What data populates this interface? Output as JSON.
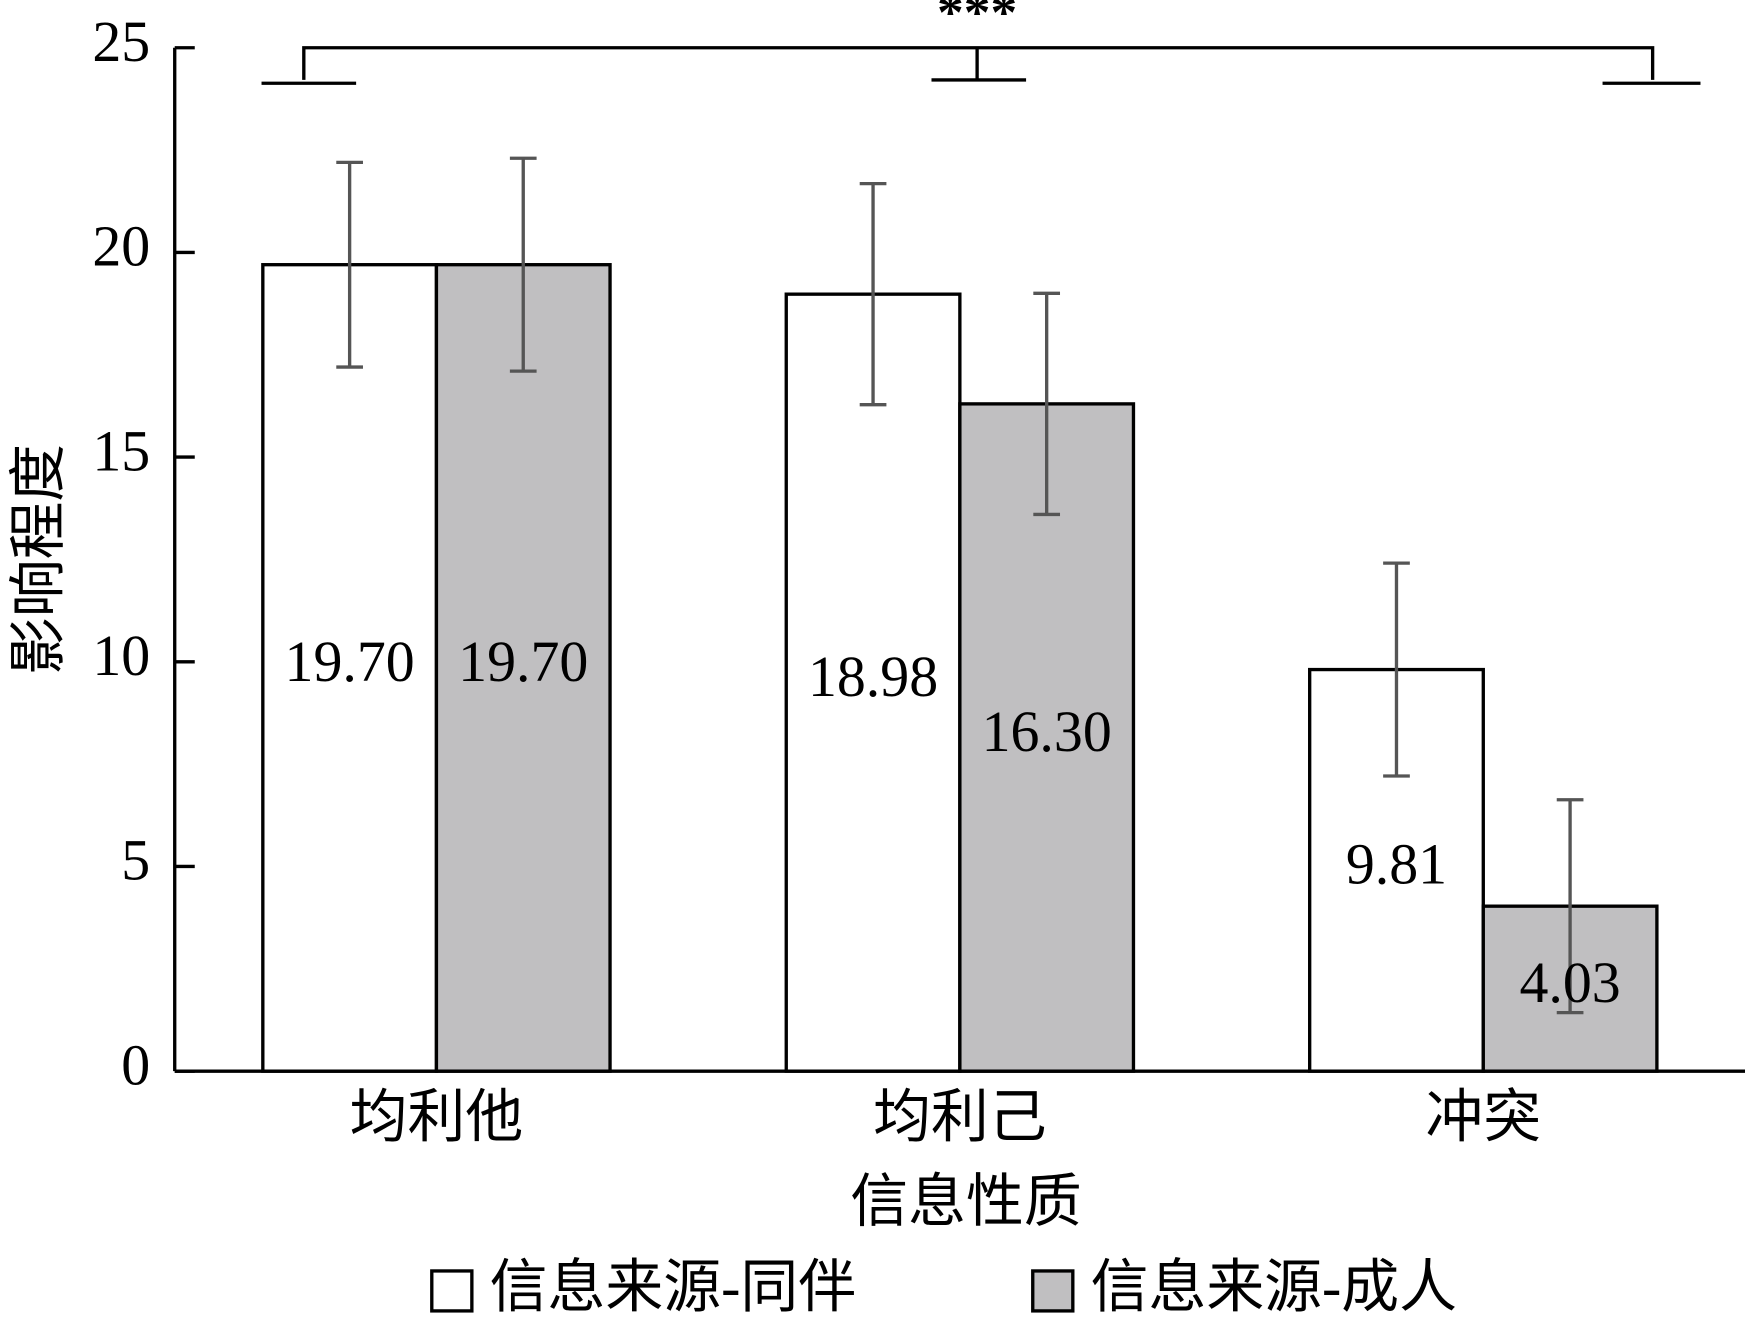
{
  "chart_data": {
    "type": "bar",
    "annotation": "***",
    "xlabel": "信息性质",
    "ylabel": "影响程度",
    "categories": [
      "均利他",
      "均利己",
      "冲突"
    ],
    "series": [
      {
        "name": "信息来源-同伴",
        "color": "#ffffff",
        "values": [
          19.7,
          18.98,
          9.81
        ],
        "value_labels": [
          "19.70",
          "18.98",
          "9.81"
        ],
        "errors": [
          2.5,
          2.7,
          2.6
        ]
      },
      {
        "name": "信息来源-成人",
        "color": "#c0bfc1",
        "values": [
          19.7,
          16.3,
          4.03
        ],
        "value_labels": [
          "19.70",
          "16.30",
          "4.03"
        ],
        "errors": [
          2.6,
          2.7,
          2.6
        ]
      }
    ],
    "ylim": [
      0,
      25
    ],
    "yticks": [
      0,
      5,
      10,
      15,
      20,
      25
    ],
    "legend": "bottom"
  }
}
